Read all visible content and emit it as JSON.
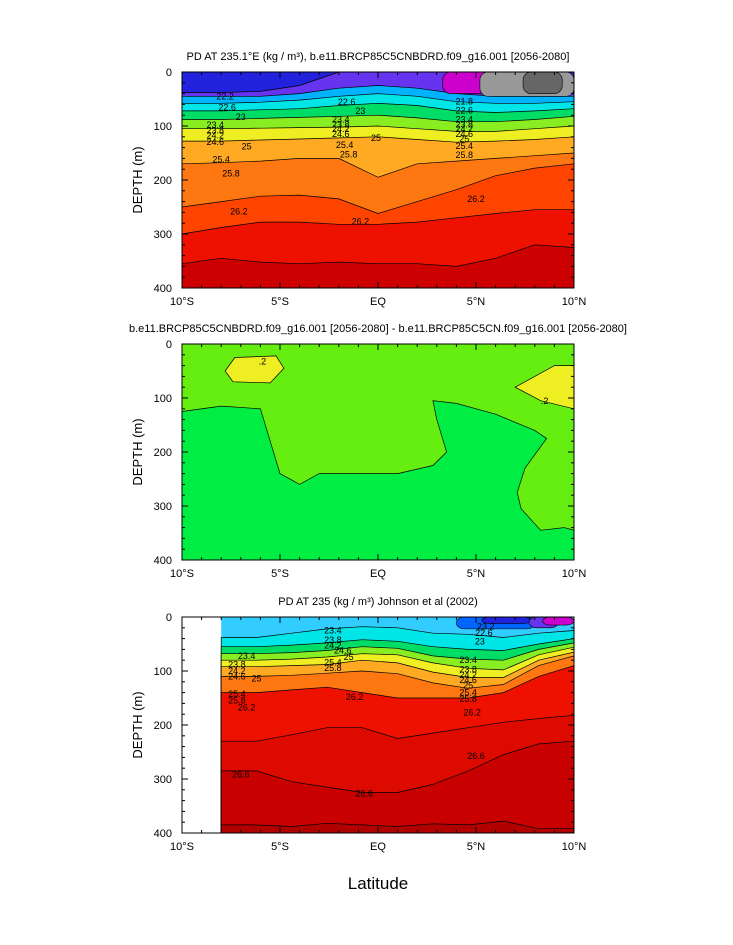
{
  "chart_data": [
    {
      "type": "contour",
      "title": "PD AT 235.1°E (kg / m³), b.e11.BRCP85C5CNBDRD.f09_g16.001 [2056-2080]",
      "ylabel": "DEPTH (m)",
      "xlabel": "",
      "xlim": [
        -10,
        10
      ],
      "ylim": [
        400,
        0
      ],
      "xticks": [
        "10°S",
        "5°S",
        "EQ",
        "5°N",
        "10°N"
      ],
      "yticks": [
        "0",
        "100",
        "200",
        "300",
        "400"
      ],
      "data_extent": [
        -10,
        10
      ],
      "layers": [
        {
          "color": "#2222dd",
          "depth": [
            0,
            0,
            0,
            0,
            0,
            0,
            0,
            0,
            0,
            0,
            0
          ]
        },
        {
          "color": "#6633ee",
          "depth": [
            38,
            38,
            36,
            25,
            0,
            0,
            0,
            0,
            10,
            18,
            30
          ]
        },
        {
          "color": "#00b3ff",
          "depth": [
            45,
            45,
            45,
            40,
            30,
            25,
            30,
            40,
            45,
            45,
            45
          ]
        },
        {
          "color": "#00e6e6",
          "depth": [
            58,
            58,
            56,
            52,
            45,
            40,
            45,
            55,
            58,
            58,
            55
          ]
        },
        {
          "color": "#00dd66",
          "depth": [
            72,
            72,
            70,
            68,
            62,
            58,
            62,
            72,
            75,
            72,
            68
          ]
        },
        {
          "color": "#88ee22",
          "depth": [
            88,
            88,
            86,
            84,
            82,
            80,
            85,
            92,
            92,
            88,
            82
          ]
        },
        {
          "color": "#eeee22",
          "depth": [
            105,
            105,
            104,
            103,
            102,
            100,
            105,
            110,
            110,
            105,
            100
          ]
        },
        {
          "color": "#ffaa22",
          "depth": [
            128,
            128,
            126,
            124,
            122,
            120,
            125,
            130,
            128,
            125,
            120
          ]
        },
        {
          "color": "#ff7711",
          "depth": [
            170,
            168,
            165,
            160,
            160,
            195,
            170,
            165,
            160,
            155,
            150
          ]
        },
        {
          "color": "#ff4400",
          "depth": [
            250,
            240,
            230,
            228,
            235,
            262,
            240,
            218,
            192,
            178,
            170
          ]
        },
        {
          "color": "#ee1100",
          "depth": [
            300,
            288,
            278,
            278,
            282,
            282,
            278,
            270,
            262,
            255,
            255
          ]
        },
        {
          "color": "#cc0000",
          "depth": [
            355,
            345,
            352,
            355,
            352,
            355,
            355,
            360,
            345,
            320,
            325
          ]
        }
      ],
      "patches": [
        {
          "color": "#cc00cc",
          "x": 3.3,
          "y": 0,
          "w": 3.8,
          "h": 40
        },
        {
          "color": "#999999",
          "x": 5.2,
          "y": 0,
          "w": 4.8,
          "h": 45
        },
        {
          "color": "#666666",
          "x": 7.4,
          "y": 0,
          "w": 2.0,
          "h": 40
        }
      ],
      "contour_labels": [
        {
          "x": -7.8,
          "y": 45,
          "text": "22.2"
        },
        {
          "x": -7.7,
          "y": 66,
          "text": "22.6"
        },
        {
          "x": -7.0,
          "y": 83,
          "text": "23"
        },
        {
          "x": -8.3,
          "y": 98,
          "text": "23.4"
        },
        {
          "x": -8.3,
          "y": 108,
          "text": "23.8"
        },
        {
          "x": -8.3,
          "y": 118,
          "text": "24.2"
        },
        {
          "x": -8.3,
          "y": 130,
          "text": "24.6"
        },
        {
          "x": -6.7,
          "y": 138,
          "text": "25"
        },
        {
          "x": -8.0,
          "y": 162,
          "text": "25.4"
        },
        {
          "x": -7.5,
          "y": 188,
          "text": "25.8"
        },
        {
          "x": -7.1,
          "y": 258,
          "text": "26.2"
        },
        {
          "x": -1.6,
          "y": 56,
          "text": "22.6"
        },
        {
          "x": -0.9,
          "y": 72,
          "text": "23"
        },
        {
          "x": -1.9,
          "y": 88,
          "text": "23.4"
        },
        {
          "x": -1.9,
          "y": 97,
          "text": "23.8"
        },
        {
          "x": -1.9,
          "y": 106,
          "text": "24.2"
        },
        {
          "x": -1.9,
          "y": 115,
          "text": "24.6"
        },
        {
          "x": -0.1,
          "y": 122,
          "text": "25"
        },
        {
          "x": -1.7,
          "y": 135,
          "text": "25.4"
        },
        {
          "x": -1.5,
          "y": 153,
          "text": "25.8"
        },
        {
          "x": -0.9,
          "y": 277,
          "text": "26.2"
        },
        {
          "x": 4.4,
          "y": 55,
          "text": "21.8"
        },
        {
          "x": 4.4,
          "y": 71,
          "text": "22.6"
        },
        {
          "x": 4.4,
          "y": 88,
          "text": "23.4"
        },
        {
          "x": 4.4,
          "y": 97,
          "text": "23.8"
        },
        {
          "x": 4.4,
          "y": 106,
          "text": "24.2"
        },
        {
          "x": 4.4,
          "y": 115,
          "text": "24.6"
        },
        {
          "x": 4.4,
          "y": 124,
          "text": "25"
        },
        {
          "x": 4.4,
          "y": 137,
          "text": "25.4"
        },
        {
          "x": 4.4,
          "y": 154,
          "text": "25.8"
        },
        {
          "x": 5.0,
          "y": 235,
          "text": "26.2"
        }
      ]
    },
    {
      "type": "contour",
      "title": "b.e11.BRCP85C5CNBDRD.f09_g16.001 [2056-2080] - b.e11.BRCP85C5CN.f09_g16.001 [2056-2080]",
      "ylabel": "DEPTH (m)",
      "xlabel": "",
      "xlim": [
        -10,
        10
      ],
      "ylim": [
        400,
        0
      ],
      "xticks": [
        "10°S",
        "5°S",
        "EQ",
        "5°N",
        "10°N"
      ],
      "yticks": [
        "0",
        "100",
        "200",
        "300",
        "400"
      ],
      "background": "#66ee11",
      "regions": [
        {
          "color": "#00ee44",
          "points": [
            [
              -10,
              125
            ],
            [
              -8,
              115
            ],
            [
              -6,
              120
            ],
            [
              -5.5,
              180
            ],
            [
              -5,
              240
            ],
            [
              -4,
              260
            ],
            [
              -3,
              240
            ],
            [
              -1,
              240
            ],
            [
              1,
              240
            ],
            [
              2.8,
              225
            ],
            [
              3.5,
              200
            ],
            [
              3.0,
              140
            ],
            [
              2.8,
              105
            ],
            [
              4,
              110
            ],
            [
              6,
              130
            ],
            [
              8,
              160
            ],
            [
              8.6,
              175
            ],
            [
              7.5,
              230
            ],
            [
              7.1,
              275
            ],
            [
              7.3,
              305
            ],
            [
              8.3,
              345
            ],
            [
              9.5,
              340
            ],
            [
              10,
              345
            ],
            [
              10,
              400
            ],
            [
              -10,
              400
            ]
          ]
        },
        {
          "color": "#eeee22",
          "points": [
            [
              -7.3,
              25
            ],
            [
              -5.2,
              22
            ],
            [
              -4.8,
              45
            ],
            [
              -5.5,
              72
            ],
            [
              -7.4,
              70
            ],
            [
              -7.8,
              50
            ]
          ]
        },
        {
          "color": "#eeee22",
          "points": [
            [
              7.0,
              80
            ],
            [
              9.0,
              40
            ],
            [
              10,
              40
            ],
            [
              10,
              120
            ],
            [
              8.3,
              105
            ]
          ]
        }
      ],
      "contour_labels": [
        {
          "x": -5.9,
          "y": 32,
          "text": ".2"
        },
        {
          "x": 8.5,
          "y": 106,
          "text": ".2"
        }
      ]
    },
    {
      "type": "contour",
      "title": "PD AT 235 (kg / m³) Johnson et al (2002)",
      "ylabel": "DEPTH (m)",
      "xlabel": "Latitude",
      "xlim": [
        -10,
        10
      ],
      "ylim": [
        400,
        0
      ],
      "xticks": [
        "10°S",
        "5°S",
        "EQ",
        "5°N",
        "10°N"
      ],
      "yticks": [
        "0",
        "100",
        "200",
        "300",
        "400"
      ],
      "data_extent": [
        -8,
        10
      ],
      "layers": [
        {
          "color": "#33ccff",
          "depth": [
            0,
            0,
            0,
            0,
            0,
            0,
            0,
            0,
            0,
            0,
            0
          ]
        },
        {
          "color": "#00e6e6",
          "depth": [
            38,
            38,
            30,
            22,
            18,
            20,
            30,
            32,
            38,
            30,
            25
          ]
        },
        {
          "color": "#00dd66",
          "depth": [
            55,
            55,
            52,
            48,
            42,
            45,
            55,
            60,
            62,
            50,
            40
          ]
        },
        {
          "color": "#88ee22",
          "depth": [
            68,
            68,
            66,
            62,
            55,
            58,
            72,
            78,
            80,
            60,
            48
          ]
        },
        {
          "color": "#eeee22",
          "depth": [
            80,
            80,
            78,
            74,
            68,
            70,
            85,
            95,
            98,
            70,
            56
          ]
        },
        {
          "color": "#ffaa22",
          "depth": [
            92,
            92,
            90,
            88,
            80,
            85,
            102,
            112,
            112,
            80,
            65
          ]
        },
        {
          "color": "#ff7711",
          "depth": [
            110,
            110,
            108,
            104,
            100,
            105,
            122,
            132,
            125,
            90,
            72
          ]
        },
        {
          "color": "#ee1100",
          "depth": [
            140,
            140,
            135,
            130,
            140,
            150,
            150,
            150,
            140,
            110,
            90
          ]
        },
        {
          "color": "#dd0a00",
          "depth": [
            230,
            230,
            218,
            205,
            205,
            225,
            215,
            205,
            195,
            188,
            182
          ]
        },
        {
          "color": "#c80000",
          "depth": [
            285,
            285,
            305,
            315,
            325,
            325,
            310,
            285,
            255,
            235,
            230
          ]
        },
        {
          "color": "#b00000",
          "depth": [
            385,
            385,
            388,
            382,
            385,
            388,
            383,
            385,
            378,
            392,
            392
          ]
        }
      ],
      "patches": [
        {
          "color": "#0066ff",
          "x": 4.0,
          "y": 0,
          "w": 4.0,
          "h": 22
        },
        {
          "color": "#2222dd",
          "x": 5.3,
          "y": 0,
          "w": 2.5,
          "h": 12
        },
        {
          "color": "#6633ee",
          "x": 7.7,
          "y": 0,
          "w": 1.5,
          "h": 20
        },
        {
          "color": "#cc00cc",
          "x": 8.4,
          "y": 0,
          "w": 1.6,
          "h": 15
        }
      ],
      "contour_labels": [
        {
          "x": -6.7,
          "y": 72,
          "text": "23.4"
        },
        {
          "x": -7.2,
          "y": 88,
          "text": "23.8"
        },
        {
          "x": -7.2,
          "y": 100,
          "text": "24.2"
        },
        {
          "x": -7.2,
          "y": 110,
          "text": "24.6"
        },
        {
          "x": -6.2,
          "y": 114,
          "text": "25"
        },
        {
          "x": -7.2,
          "y": 143,
          "text": "25.4"
        },
        {
          "x": -7.2,
          "y": 155,
          "text": "25.8"
        },
        {
          "x": -6.7,
          "y": 168,
          "text": "26.2"
        },
        {
          "x": -2.3,
          "y": 25,
          "text": "23.4"
        },
        {
          "x": -2.3,
          "y": 43,
          "text": "23.8"
        },
        {
          "x": -2.3,
          "y": 53,
          "text": "24.2"
        },
        {
          "x": -1.8,
          "y": 62,
          "text": "24.6"
        },
        {
          "x": -1.5,
          "y": 74,
          "text": "25"
        },
        {
          "x": -2.3,
          "y": 84,
          "text": "25.4"
        },
        {
          "x": -2.3,
          "y": 94,
          "text": "25.8"
        },
        {
          "x": -1.2,
          "y": 148,
          "text": "26.2"
        },
        {
          "x": 5.5,
          "y": 18,
          "text": "23.2"
        },
        {
          "x": 5.4,
          "y": 30,
          "text": "22.6"
        },
        {
          "x": 5.2,
          "y": 45,
          "text": "23"
        },
        {
          "x": 4.6,
          "y": 80,
          "text": "23.4"
        },
        {
          "x": 4.6,
          "y": 97,
          "text": "23.8"
        },
        {
          "x": 4.6,
          "y": 107,
          "text": "24.2"
        },
        {
          "x": 4.6,
          "y": 117,
          "text": "24.6"
        },
        {
          "x": 4.6,
          "y": 127,
          "text": "25"
        },
        {
          "x": 4.6,
          "y": 140,
          "text": "25.4"
        },
        {
          "x": 4.6,
          "y": 152,
          "text": "25.8"
        },
        {
          "x": 4.8,
          "y": 177,
          "text": "26.2"
        },
        {
          "x": -7.0,
          "y": 292,
          "text": "26.6"
        },
        {
          "x": -0.7,
          "y": 327,
          "text": "26.6"
        },
        {
          "x": 5.0,
          "y": 257,
          "text": "26.6"
        }
      ]
    }
  ]
}
